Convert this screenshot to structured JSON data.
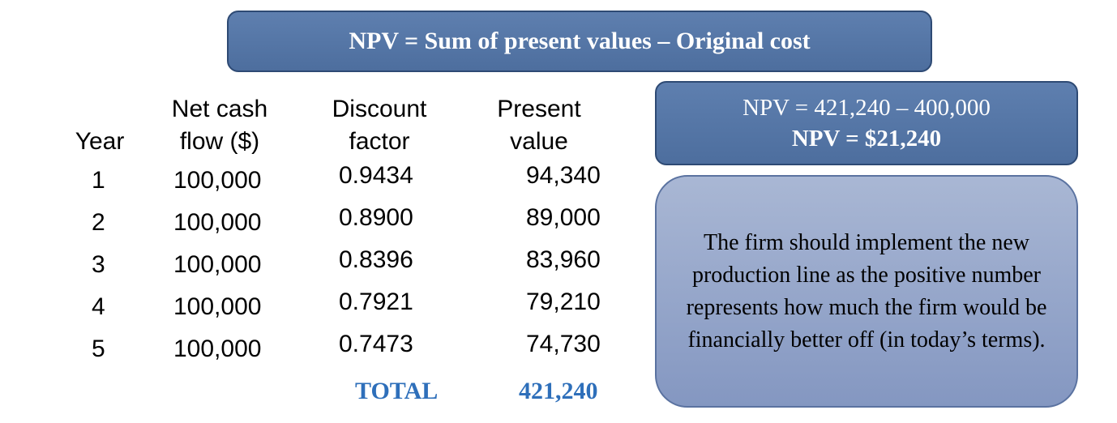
{
  "banner": {
    "formula": "NPV = Sum of present values – Original cost"
  },
  "table": {
    "headers": {
      "year": "Year",
      "cash_flow": [
        "Net cash",
        "flow ($)"
      ],
      "discount": [
        "Discount",
        "factor"
      ],
      "present": [
        "Present",
        "value"
      ]
    },
    "rows": [
      {
        "year": "1",
        "cash_flow": "100,000",
        "discount": "0.9434",
        "present": "94,340"
      },
      {
        "year": "2",
        "cash_flow": "100,000",
        "discount": "0.8900",
        "present": "89,000"
      },
      {
        "year": "3",
        "cash_flow": "100,000",
        "discount": "0.8396",
        "present": "83,960"
      },
      {
        "year": "4",
        "cash_flow": "100,000",
        "discount": "0.7921",
        "present": "79,210"
      },
      {
        "year": "5",
        "cash_flow": "100,000",
        "discount": "0.7473",
        "present": "74,730"
      }
    ],
    "total_label": "TOTAL",
    "total_value": "421,240"
  },
  "result": {
    "calculation": "NPV = 421,240 – 400,000",
    "answer": "NPV = $21,240"
  },
  "advice": {
    "text": "The firm should implement the new production line as the positive number  represents how much the firm would be financially better off (in today’s terms)."
  },
  "colors": {
    "box_blue": "#5574a6",
    "box_light": "#97a8cc",
    "total_blue": "#2e6fba"
  }
}
